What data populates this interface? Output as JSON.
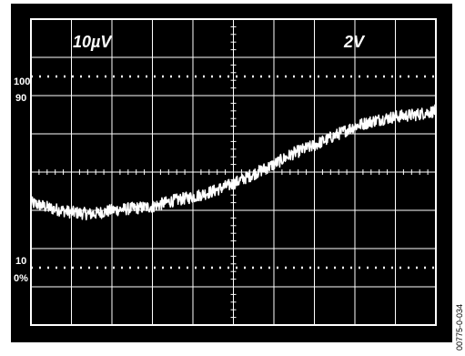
{
  "scope": {
    "channel_scale_left": "10µV",
    "channel_scale_right": "2V",
    "marker_labels": [
      "100",
      "90",
      "10",
      "0%"
    ],
    "figure_id": "00775-0-034",
    "colors": {
      "screen": "#000000",
      "grid": "#ffffff",
      "trace": "#ffffff",
      "page": "#ffffff"
    }
  },
  "chart_data": {
    "type": "line",
    "title": "",
    "xlabel": "",
    "ylabel": "",
    "grid": true,
    "xlim": [
      0,
      10
    ],
    "ylim": [
      0,
      8
    ],
    "x_divisions": 10,
    "y_divisions": 8,
    "reference_lines": [
      {
        "label": "100",
        "y": 6.5
      },
      {
        "label": "0%",
        "y": 1.5
      }
    ],
    "series": [
      {
        "x": [
          0.0,
          0.5,
          1.0,
          1.5,
          2.0,
          2.5,
          3.0,
          3.5,
          4.0,
          4.5,
          5.0,
          5.5,
          6.0,
          6.5,
          7.0,
          7.5,
          8.0,
          8.5,
          9.0,
          9.5,
          10.0
        ],
        "y": [
          3.2,
          3.05,
          2.95,
          2.9,
          3.0,
          3.05,
          3.1,
          3.25,
          3.35,
          3.5,
          3.7,
          3.95,
          4.2,
          4.5,
          4.7,
          4.95,
          5.2,
          5.35,
          5.45,
          5.5,
          5.6
        ]
      }
    ]
  }
}
